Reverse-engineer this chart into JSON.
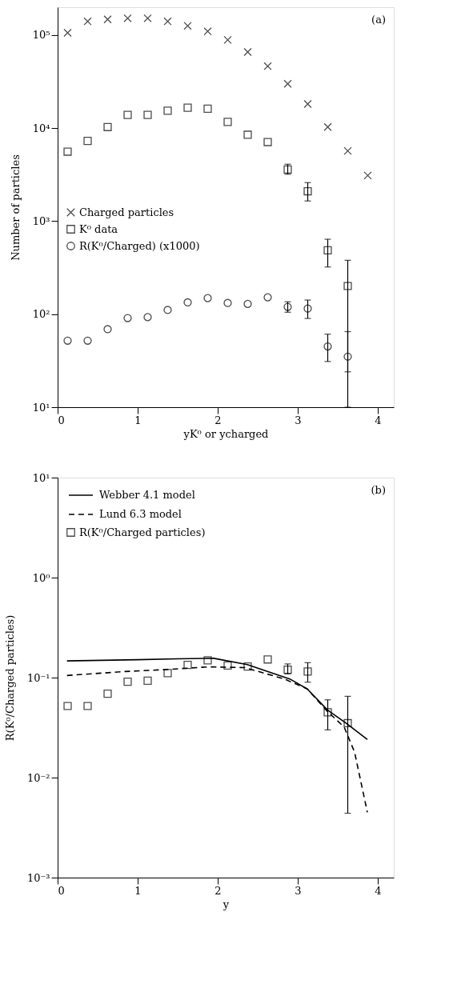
{
  "chart_data": [
    {
      "type": "scatter",
      "xlabel": "yK⁰ or ycharged",
      "ylabel": "Number of particles",
      "annotations": [
        "(a)"
      ],
      "log": "y",
      "grid": false,
      "legend": "left",
      "xlim": [
        0,
        4.2
      ],
      "xticks": [
        0,
        1,
        2,
        3,
        4
      ],
      "ylim": [
        10,
        200000
      ],
      "yticks": [
        {
          "value": 10,
          "label": "10¹"
        },
        {
          "value": 100,
          "label": "10²"
        },
        {
          "value": 1000,
          "label": "10³"
        },
        {
          "value": 10000,
          "label": "10⁴"
        },
        {
          "value": 100000,
          "label": "10⁵"
        }
      ],
      "series": [
        {
          "name": "Charged particles",
          "color": "#000000",
          "marker": "cross",
          "x": [
            0.125,
            0.375,
            0.625,
            0.875,
            1.125,
            1.375,
            1.625,
            1.875,
            2.125,
            2.375,
            2.625,
            2.875,
            3.125,
            3.375,
            3.625,
            3.875
          ],
          "values": [
            106000,
            141000,
            148000,
            152000,
            152000,
            141000,
            126000,
            110000,
            89000,
            66000,
            46500,
            30000,
            18200,
            10300,
            5700,
            3100
          ]
        },
        {
          "name": "K⁰ data",
          "color": "#000000",
          "marker": "square",
          "x": [
            0.125,
            0.375,
            0.625,
            0.875,
            1.125,
            1.375,
            1.625,
            1.875,
            2.125,
            2.375,
            2.625,
            2.875,
            3.125,
            3.375,
            3.625
          ],
          "values": [
            5600,
            7300,
            10300,
            13900,
            13900,
            15400,
            16600,
            16200,
            11700,
            8500,
            7100,
            3600,
            2100,
            487,
            201
          ],
          "errors": [
            null,
            null,
            null,
            null,
            null,
            null,
            null,
            null,
            null,
            null,
            null,
            [
              3200,
              4100
            ],
            [
              1650,
              2600
            ],
            [
              322,
              640
            ],
            [
              10,
              380
            ]
          ]
        },
        {
          "name": "R(K⁰/Charged) (x1000)",
          "color": "#000000",
          "marker": "circle",
          "x": [
            0.125,
            0.375,
            0.625,
            0.875,
            1.125,
            1.375,
            1.625,
            1.875,
            2.125,
            2.375,
            2.625,
            2.875,
            3.125,
            3.375,
            3.625
          ],
          "values": [
            52,
            52,
            69,
            91,
            93,
            111,
            134,
            149,
            132,
            129,
            152,
            120,
            115,
            45,
            35
          ],
          "errors": [
            null,
            null,
            null,
            null,
            null,
            null,
            null,
            null,
            null,
            null,
            null,
            [
              105,
              136
            ],
            [
              90,
              142
            ],
            [
              31,
              61
            ],
            [
              24,
              65
            ]
          ]
        }
      ]
    },
    {
      "type": "scatter",
      "xlabel": "y",
      "ylabel": "R(K⁰/Charged particles)",
      "annotations": [
        "(b)"
      ],
      "log": "y",
      "grid": false,
      "legend": "top left",
      "xlim": [
        0,
        4.2
      ],
      "xticks": [
        0,
        1,
        2,
        3,
        4
      ],
      "ylim": [
        0.001,
        10
      ],
      "yticks": [
        {
          "value": 0.001,
          "label": "10⁻³"
        },
        {
          "value": 0.01,
          "label": "10⁻²"
        },
        {
          "value": 0.1,
          "label": "10⁻¹"
        },
        {
          "value": 1,
          "label": "10⁰"
        },
        {
          "value": 10,
          "label": "10¹"
        }
      ],
      "series": [
        {
          "name": "Webber 4.1 model",
          "type": "line",
          "line_style": "solid",
          "color": "#000000",
          "x": [
            0.117,
            1.0,
            1.5,
            1.95,
            2.37,
            2.9,
            3.12,
            3.37,
            3.61,
            3.87
          ],
          "values": [
            0.147,
            0.151,
            0.154,
            0.156,
            0.135,
            0.097,
            0.077,
            0.0475,
            0.0347,
            0.024
          ]
        },
        {
          "name": "Lund 6.3 model",
          "type": "line",
          "line_style": "dashed",
          "color": "#000000",
          "x": [
            0.117,
            0.84,
            1.33,
            1.88,
            2.34,
            2.83,
            3.12,
            3.37,
            3.58,
            3.71,
            3.87
          ],
          "values": [
            0.105,
            0.115,
            0.12,
            0.128,
            0.126,
            0.097,
            0.077,
            0.046,
            0.032,
            0.018,
            0.0045
          ]
        },
        {
          "name": "R(K⁰/Charged particles)",
          "color": "#000000",
          "marker": "square",
          "x": [
            0.125,
            0.375,
            0.625,
            0.875,
            1.125,
            1.375,
            1.625,
            1.875,
            2.125,
            2.375,
            2.625,
            2.875,
            3.125,
            3.375,
            3.625
          ],
          "values": [
            0.052,
            0.052,
            0.069,
            0.091,
            0.093,
            0.111,
            0.134,
            0.149,
            0.132,
            0.129,
            0.152,
            0.12,
            0.115,
            0.045,
            0.035
          ],
          "errors": [
            null,
            null,
            null,
            null,
            null,
            null,
            null,
            null,
            null,
            null,
            null,
            [
              0.109,
              0.137
            ],
            [
              0.09,
              0.141
            ],
            [
              0.03,
              0.06
            ],
            [
              0.0044,
              0.065
            ]
          ]
        }
      ]
    }
  ]
}
